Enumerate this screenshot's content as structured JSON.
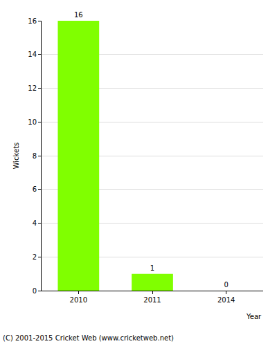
{
  "chart_data": {
    "type": "bar",
    "categories": [
      "2010",
      "2011",
      "2014"
    ],
    "values": [
      16,
      1,
      0
    ],
    "color": "#80ff00",
    "x_label": "Year",
    "y_label": "Wickets",
    "ylim": [
      0,
      16
    ],
    "yticks": [
      0,
      2,
      4,
      6,
      8,
      10,
      12,
      14,
      16
    ],
    "grid": true,
    "data_labels": true,
    "annotations": [
      "(C) 2001-2015 Cricket Web (www.cricketweb.net)"
    ]
  }
}
